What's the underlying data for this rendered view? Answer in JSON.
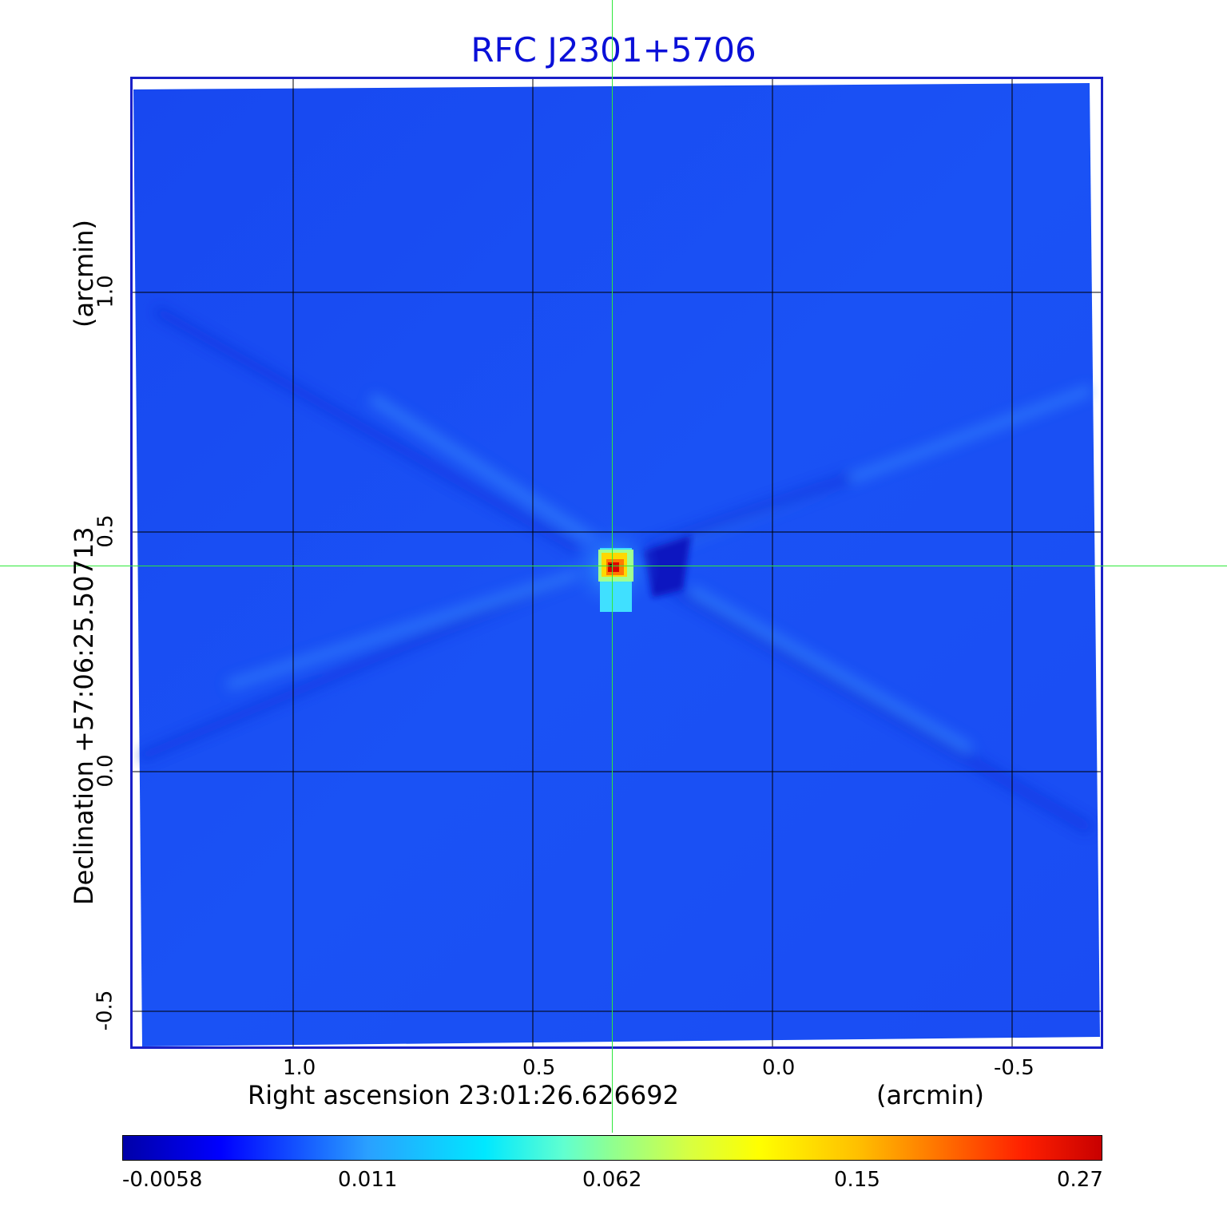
{
  "title": "RFC J2301+5706",
  "x_axis": {
    "label": "Right ascension  23:01:26.626692",
    "unit": "(arcmin)",
    "ticks": [
      "1.0",
      "0.5",
      "0.0",
      "-0.5"
    ]
  },
  "y_axis": {
    "label": "Declination  +57:06:25.50713",
    "unit": "(arcmin)",
    "ticks": [
      "1.0",
      "0.5",
      "0.0",
      "-0.5"
    ]
  },
  "colorbar": {
    "ticks": [
      "-0.0058",
      "0.011",
      "0.062",
      "0.15",
      "0.27"
    ]
  },
  "colors": {
    "background_map": "#1a4cf5",
    "title": "#0a10d8",
    "crosshair": "#2ee83a",
    "peak": "#c80000"
  }
}
